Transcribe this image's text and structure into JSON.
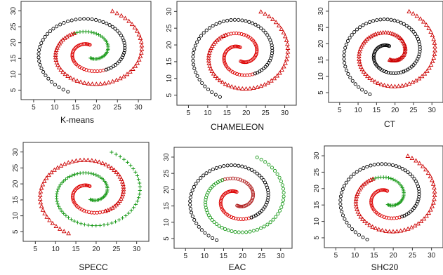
{
  "chart_data": [
    {
      "type": "scatter",
      "title": "K-means",
      "method": "kmeans",
      "xlim": [
        2,
        33
      ],
      "ylim": [
        2,
        33
      ],
      "xticks": [
        5,
        10,
        15,
        20,
        25,
        30
      ],
      "yticks": [
        5,
        10,
        15,
        20,
        25,
        30
      ],
      "series": [
        {
          "color": "#cc0000",
          "marker": "triangle"
        },
        {
          "color": "#1a9a1a",
          "marker": "plus"
        },
        {
          "color": "#000000",
          "marker": "circle"
        },
        {
          "color": "#dd0000",
          "marker": "circle"
        }
      ]
    },
    {
      "type": "scatter",
      "title": "CHAMELEON",
      "method": "chameleon",
      "xlim": [
        2,
        33
      ],
      "ylim": [
        2,
        33
      ],
      "xticks": [
        5,
        10,
        15,
        20,
        25,
        30
      ],
      "yticks": [
        5,
        10,
        15,
        20,
        25,
        30
      ],
      "series": [
        {
          "color": "#000000",
          "marker": "circle"
        },
        {
          "color": "#1a9a1a",
          "marker": "plus"
        },
        {
          "color": "#cc0000",
          "marker": "triangle"
        },
        {
          "color": "#dd0000",
          "marker": "circle"
        }
      ]
    },
    {
      "type": "scatter",
      "title": "CT",
      "method": "ct",
      "xlim": [
        2,
        33
      ],
      "ylim": [
        2,
        33
      ],
      "xticks": [
        5,
        10,
        15,
        20,
        25,
        30
      ],
      "yticks": [
        5,
        10,
        15,
        20,
        25,
        30
      ],
      "series": [
        {
          "color": "#000000",
          "marker": "circle"
        },
        {
          "color": "#cc0000",
          "marker": "triangle"
        },
        {
          "color": "#dd0000",
          "marker": "circle"
        }
      ]
    },
    {
      "type": "scatter",
      "title": "SPECC",
      "method": "specc",
      "xlim": [
        2,
        33
      ],
      "ylim": [
        2,
        33
      ],
      "xticks": [
        5,
        10,
        15,
        20,
        25,
        30
      ],
      "yticks": [
        5,
        10,
        15,
        20,
        25,
        30
      ],
      "series": [
        {
          "color": "#000000",
          "marker": "circle"
        },
        {
          "color": "#1a9a1a",
          "marker": "plus"
        },
        {
          "color": "#cc0000",
          "marker": "triangle"
        },
        {
          "color": "#dd0000",
          "marker": "circle"
        }
      ]
    },
    {
      "type": "scatter",
      "title": "EAC",
      "method": "eac",
      "xlim": [
        2,
        33
      ],
      "ylim": [
        2,
        33
      ],
      "xticks": [
        5,
        10,
        15,
        20,
        25,
        30
      ],
      "yticks": [
        5,
        10,
        15,
        20,
        25,
        30
      ],
      "series": [
        {
          "color": "#000000",
          "marker": "circle"
        },
        {
          "color": "#1a9a1a",
          "marker": "circle"
        },
        {
          "color": "#b22222",
          "marker": "circle"
        },
        {
          "color": "#dd0000",
          "marker": "circle"
        }
      ]
    },
    {
      "type": "scatter",
      "title": "SHC20",
      "method": "shc",
      "xlim": [
        2,
        33
      ],
      "ylim": [
        2,
        33
      ],
      "xticks": [
        5,
        10,
        15,
        20,
        25,
        30
      ],
      "yticks": [
        5,
        10,
        15,
        20,
        25,
        30
      ],
      "series": [
        {
          "color": "#000000",
          "marker": "circle"
        },
        {
          "color": "#1a9a1a",
          "marker": "plus"
        },
        {
          "color": "#cc0000",
          "marker": "triangle"
        },
        {
          "color": "#dd0000",
          "marker": "circle"
        }
      ]
    }
  ]
}
